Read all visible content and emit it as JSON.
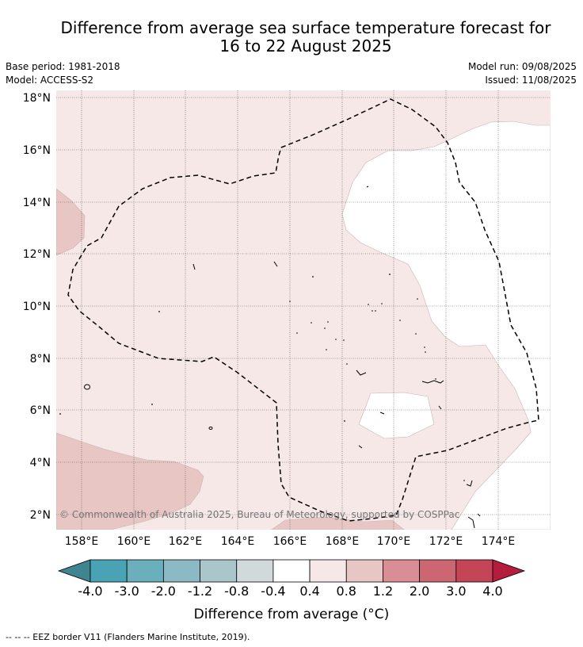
{
  "title": {
    "line1": "Difference from average sea surface temperature forecast for",
    "line2": "16 to 22 August 2025"
  },
  "meta": {
    "base_period": "Base period: 1981-2018",
    "model": "Model: ACCESS-S2",
    "model_run": "Model run: 09/08/2025",
    "issued": "Issued: 11/08/2025"
  },
  "map": {
    "lat_labels": [
      "18°N",
      "16°N",
      "14°N",
      "12°N",
      "10°N",
      "8°N",
      "6°N",
      "4°N",
      "2°N"
    ],
    "lon_labels": [
      "158°E",
      "160°E",
      "162°E",
      "164°E",
      "166°E",
      "168°E",
      "170°E",
      "172°E",
      "174°E"
    ],
    "copyright": "© Commonwealth of Australia 2025, Bureau of Meteorology, supported by COSPPac",
    "colors": {
      "near_average": "#f5e8e7",
      "warm_anomaly": "#e8c6c4",
      "no_anomaly": "#ffffff"
    }
  },
  "legend": {
    "labels": [
      "-4.0",
      "-3.0",
      "-2.0",
      "-1.2",
      "-0.8",
      "-0.4",
      "0.4",
      "0.8",
      "1.2",
      "2.0",
      "3.0",
      "4.0"
    ],
    "colors": [
      "#4aa3b4",
      "#6bafbd",
      "#8cbac4",
      "#a9c6cb",
      "#d2d9db",
      "#ffffff",
      "#f5e8e7",
      "#e8c6c4",
      "#d98e96",
      "#cd6673",
      "#c44656"
    ],
    "low_arrow_color": "#3e8590",
    "high_arrow_color": "#b51d3e",
    "title": "Difference from average (°C)"
  },
  "footer": {
    "eez": "--  --  -- EEZ border V11 (Flanders Marine Institute, 2019)."
  }
}
